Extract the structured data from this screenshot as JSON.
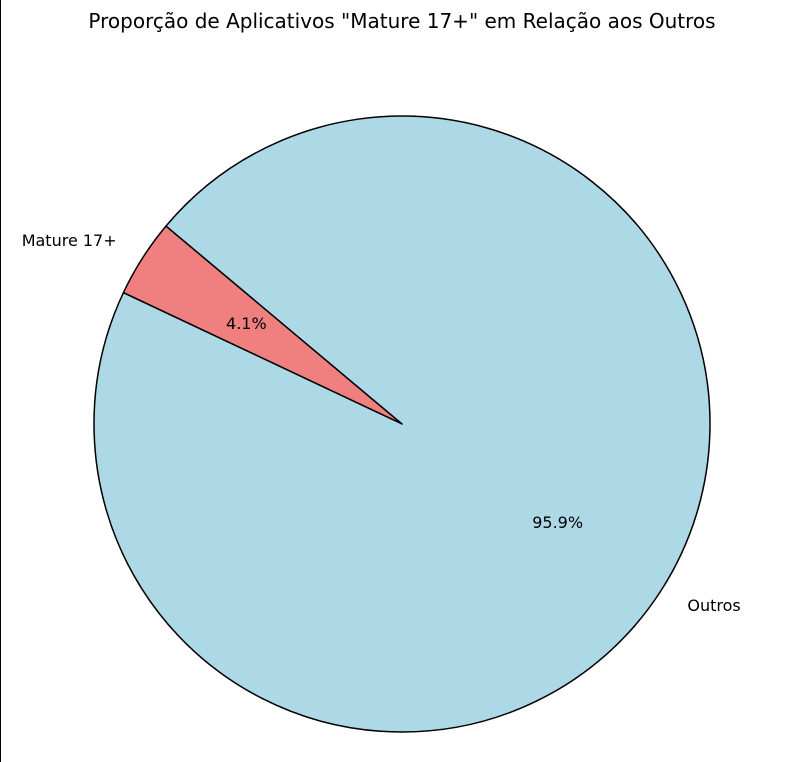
{
  "chart_data": {
    "type": "pie",
    "title": "Proporção de Aplicativos \"Mature 17+\" em Relação aos Outros",
    "slices": [
      {
        "label": "Mature 17+",
        "value": 4.1,
        "pct_label": "4.1%",
        "color": "#f08080"
      },
      {
        "label": "Outros",
        "value": 95.9,
        "pct_label": "95.9%",
        "color": "#add8e6"
      }
    ],
    "start_angle_deg": 140,
    "edge_color": "#000000",
    "legend": "none"
  }
}
